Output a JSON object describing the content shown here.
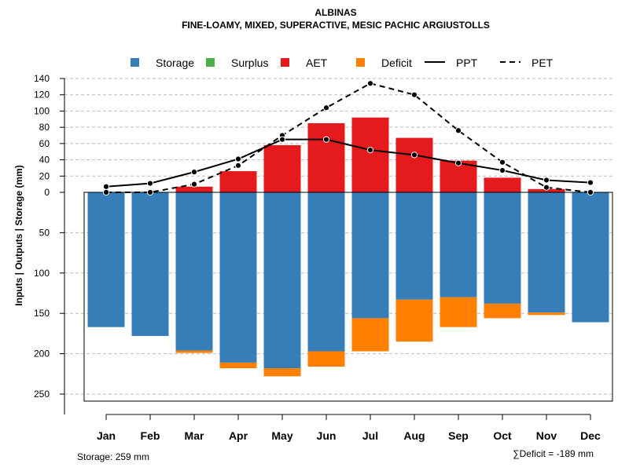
{
  "chart_data": {
    "type": "bar",
    "title": "ALBINAS",
    "subtitle": "FINE-LOAMY, MIXED, SUPERACTIVE, MESIC PACHIC ARGIUSTOLLS",
    "ylabel": "Inputs | Outputs | Storage    (mm)",
    "categories": [
      "Jan",
      "Feb",
      "Mar",
      "Apr",
      "May",
      "Jun",
      "Jul",
      "Aug",
      "Sep",
      "Oct",
      "Nov",
      "Dec"
    ],
    "upper_ylim": [
      0,
      140
    ],
    "upper_ticks": [
      0,
      20,
      40,
      60,
      80,
      100,
      120,
      140
    ],
    "lower_ylim": [
      0,
      260
    ],
    "lower_ticks": [
      50,
      100,
      150,
      200,
      250
    ],
    "legend": {
      "storage": "Storage",
      "surplus": "Surplus",
      "aet": "AET",
      "deficit": "Deficit",
      "ppt": "PPT",
      "pet": "PET"
    },
    "series": [
      {
        "name": "AET",
        "values": [
          0,
          0,
          7,
          26,
          58,
          85,
          92,
          67,
          39,
          18,
          4,
          0
        ],
        "color": "#e41a1c"
      },
      {
        "name": "PPT",
        "values": [
          7,
          11,
          25,
          41,
          65,
          65,
          52,
          46,
          36,
          27,
          15,
          12
        ],
        "color": "#000000"
      },
      {
        "name": "PET",
        "values": [
          0,
          0,
          10,
          33,
          70,
          104,
          134,
          120,
          76,
          37,
          6,
          0
        ],
        "color": "#000000"
      },
      {
        "name": "Storage",
        "values": [
          167,
          178,
          196,
          211,
          218,
          197,
          156,
          133,
          130,
          138,
          149,
          161
        ],
        "color": "#377eb8"
      },
      {
        "name": "Deficit",
        "values": [
          0,
          0,
          3,
          7,
          10,
          19,
          41,
          52,
          37,
          18,
          3,
          0
        ],
        "color": "#ff7f00"
      },
      {
        "name": "Surplus",
        "values": [
          0,
          0,
          0,
          0,
          0,
          0,
          0,
          0,
          0,
          0,
          0,
          0
        ],
        "color": "#4daf4a"
      }
    ],
    "storage_note": "Storage: 259 mm",
    "deficit_note": "∑Deficit = -189 mm"
  }
}
